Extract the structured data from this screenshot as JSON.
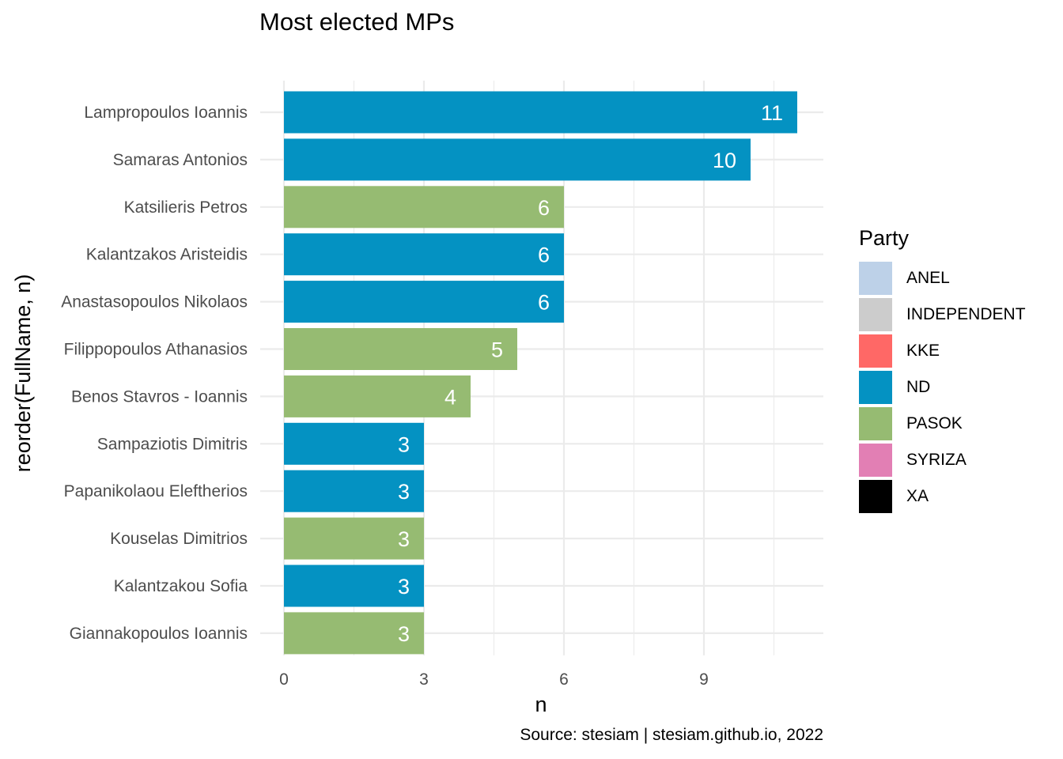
{
  "chart_data": {
    "type": "bar",
    "orientation": "horizontal",
    "title": "Most elected MPs",
    "xlabel": "n",
    "ylabel": "reorder(FullName, n)",
    "caption": "Source: stesiam | stesiam.github.io, 2022",
    "xlim": [
      0,
      11.5
    ],
    "xticks": [
      0,
      3,
      6,
      9
    ],
    "grid": true,
    "legend_placement": "right",
    "legend_title": "Party",
    "categories": [
      "Lampropoulos Ioannis",
      "Samaras Antonios",
      "Katsilieris Petros",
      "Kalantzakos Aristeidis",
      "Anastasopoulos Nikolaos",
      "Filippopoulos Athanasios",
      "Benos Stavros - Ioannis",
      "Sampaziotis Dimitris",
      "Papanikolaou Eleftherios",
      "Kouselas Dimitrios",
      "Kalantzakou Sofia",
      "Giannakopoulos Ioannis"
    ],
    "values": [
      11,
      10,
      6,
      6,
      6,
      5,
      4,
      3,
      3,
      3,
      3,
      3
    ],
    "party": [
      "ND",
      "ND",
      "PASOK",
      "ND",
      "ND",
      "PASOK",
      "PASOK",
      "ND",
      "ND",
      "PASOK",
      "ND",
      "PASOK"
    ],
    "legend": [
      {
        "label": "ANEL",
        "color": "#BDD1E8"
      },
      {
        "label": "INDEPENDENT",
        "color": "#CCCCCC"
      },
      {
        "label": "KKE",
        "color": "#FF6866"
      },
      {
        "label": "ND",
        "color": "#0492C2"
      },
      {
        "label": "PASOK",
        "color": "#96BB72"
      },
      {
        "label": "SYRIZA",
        "color": "#E27FB4"
      },
      {
        "label": "XA",
        "color": "#000000"
      }
    ]
  }
}
